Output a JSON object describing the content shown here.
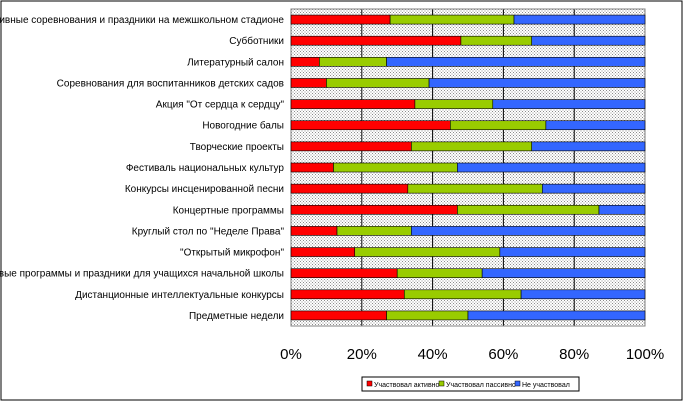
{
  "chart_data": {
    "type": "bar",
    "orientation": "horizontal",
    "stacked": "percent",
    "categories": [
      "Спортивные соревнования и праздники на межшкольном стадионе",
      "Субботники",
      "Литературный салон",
      "Соревнования для воспитанников детских садов",
      "Акция \"От сердца к сердцу\"",
      "Новогодние балы",
      "Творческие проекты",
      "Фестиваль национальных культур",
      "Конкурсы инсценированной песни",
      "Концертные программы",
      "Круглый стол по \"Неделе Права\"",
      "\"Открытый микрофон\"",
      "Игровые программы и праздники для учащихся начальной школы",
      "Дистанционные  интеллектуальные конкурсы",
      "Предметные недели"
    ],
    "series": [
      {
        "name": "Участвовал активно",
        "color": "#ff0000",
        "values": [
          28,
          48,
          8,
          10,
          35,
          45,
          34,
          12,
          33,
          47,
          13,
          18,
          30,
          32,
          27
        ]
      },
      {
        "name": "Участвовал пассивно",
        "color": "#99cc00",
        "values": [
          35,
          20,
          19,
          29,
          22,
          27,
          34,
          35,
          38,
          40,
          21,
          41,
          24,
          33,
          23
        ]
      },
      {
        "name": "Не участвовал",
        "color": "#3366ff",
        "values": [
          37,
          32,
          73,
          61,
          43,
          28,
          32,
          53,
          29,
          13,
          66,
          41,
          46,
          35,
          50
        ]
      }
    ],
    "xlim": [
      0,
      100
    ],
    "xticks": [
      "0%",
      "20%",
      "40%",
      "60%",
      "80%",
      "100%"
    ],
    "grid": true,
    "legend_position": "bottom",
    "plot_background": "#c0c0c0"
  }
}
